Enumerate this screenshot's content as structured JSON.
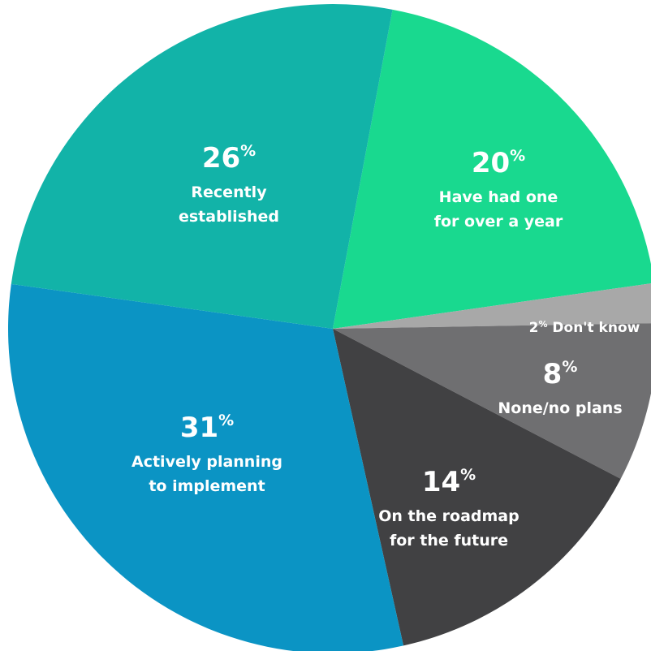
{
  "chart_data": {
    "type": "pie",
    "title": "",
    "percent_symbol": "%",
    "slices": [
      {
        "value": 20,
        "label_lines": [
          "Have had one",
          "for over a year"
        ],
        "color": "#19d98f"
      },
      {
        "value": 2,
        "label_lines": [
          "Don't know"
        ],
        "color": "#a8a8a8"
      },
      {
        "value": 8,
        "label_lines": [
          "None/no plans"
        ],
        "color": "#6f6f71"
      },
      {
        "value": 14,
        "label_lines": [
          "On the roadmap",
          "for the future"
        ],
        "color": "#414143"
      },
      {
        "value": 31,
        "label_lines": [
          "Actively planning",
          "to implement"
        ],
        "color": "#0b94c4"
      },
      {
        "value": 26,
        "label_lines": [
          "Recently",
          "established"
        ],
        "color": "#12b3a8"
      }
    ]
  }
}
